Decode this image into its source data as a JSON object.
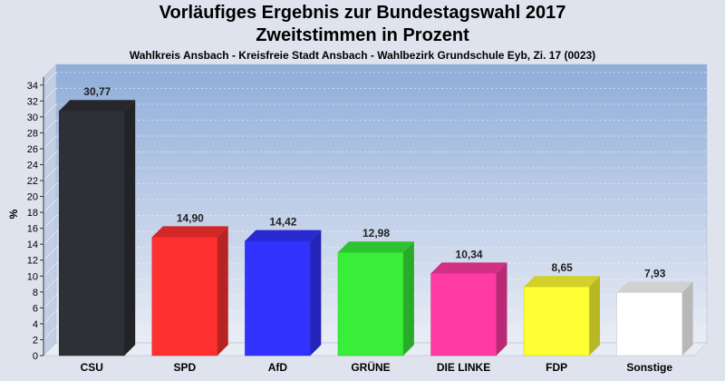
{
  "chart_data": {
    "type": "bar",
    "title": "Vorläufiges Ergebnis zur Bundestagswahl 2017",
    "title_line2": "Zweitstimmen in Prozent",
    "subtitle": "Wahlkreis Ansbach - Kreisfreie Stadt Ansbach - Wahlbezirk Grundschule Eyb, Zi. 17 (0023)",
    "ylabel": "%",
    "xlabel": "",
    "ylim": [
      0,
      35
    ],
    "yticks": [
      0,
      2,
      4,
      6,
      8,
      10,
      12,
      14,
      16,
      18,
      20,
      22,
      24,
      26,
      28,
      30,
      32,
      34
    ],
    "grid": true,
    "legend": "none",
    "categories": [
      "CSU",
      "SPD",
      "AfD",
      "GRÜNE",
      "DIE LINKE",
      "FDP",
      "Sonstige"
    ],
    "values": [
      30.77,
      14.9,
      14.42,
      12.98,
      10.34,
      8.65,
      7.93
    ],
    "value_labels": [
      "30,77",
      "14,90",
      "14,42",
      "12,98",
      "10,34",
      "8,65",
      "7,93"
    ],
    "colors": [
      "#2f3035",
      "#ff3030",
      "#3232ff",
      "#38ee38",
      "#ff3aa2",
      "#ffff33",
      "#ffffff"
    ]
  }
}
